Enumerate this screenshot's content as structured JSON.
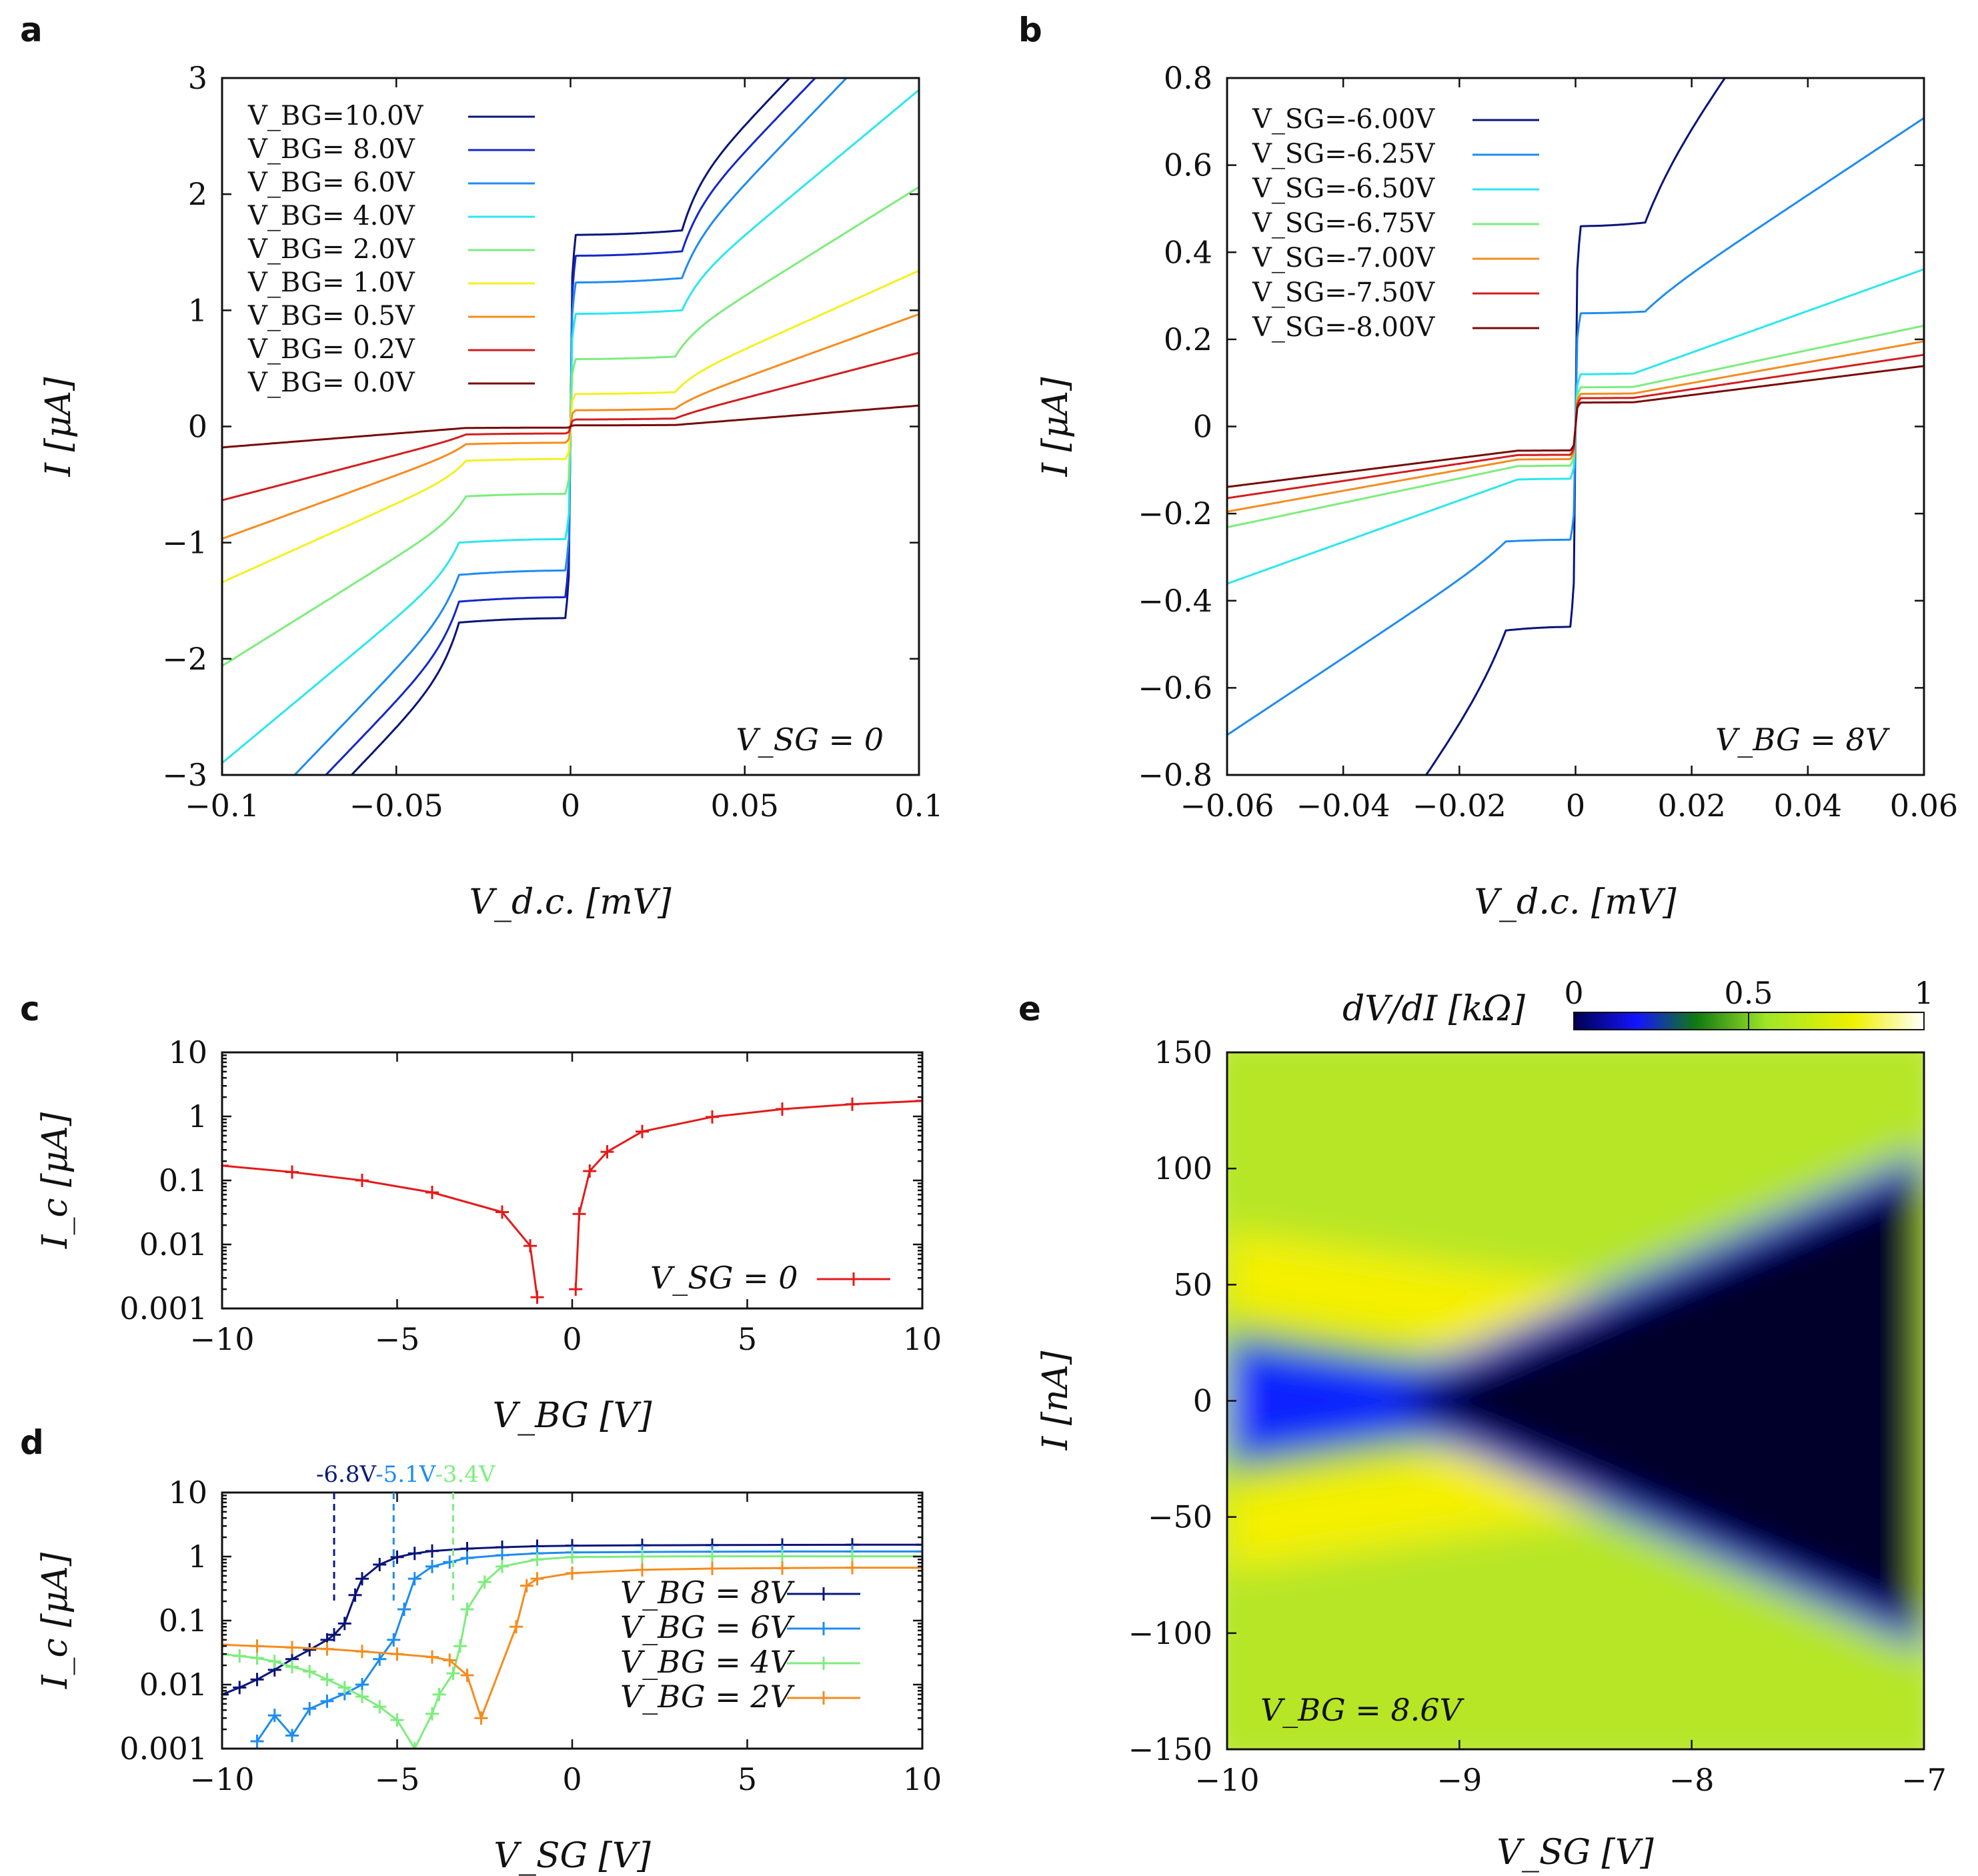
{
  "panels": {
    "a": {
      "label": "a",
      "xlabel": "V_d.c. [mV]",
      "ylabel": "I [μA]",
      "annotation": "V_SG = 0",
      "xticks": [
        "−0.1",
        "−0.05",
        "0",
        "0.05",
        "0.1"
      ],
      "yticks": [
        "−3",
        "−2",
        "−1",
        "0",
        "1",
        "2",
        "3"
      ]
    },
    "b": {
      "label": "b",
      "xlabel": "V_d.c. [mV]",
      "ylabel": "I [μA]",
      "annotation": "V_BG = 8V",
      "xticks": [
        "−0.06",
        "−0.04",
        "−0.02",
        "0",
        "0.02",
        "0.04",
        "0.06"
      ],
      "yticks": [
        "−0.8",
        "−0.6",
        "−0.4",
        "−0.2",
        "0",
        "0.2",
        "0.4",
        "0.6",
        "0.8"
      ]
    },
    "c": {
      "label": "c",
      "xlabel": "V_BG [V]",
      "ylabel": "I_c [μA]",
      "xticks": [
        "−10",
        "−5",
        "0",
        "5",
        "10"
      ],
      "yticks": [
        "0.001",
        "0.01",
        "0.1",
        "1",
        "10"
      ]
    },
    "d": {
      "label": "d",
      "xlabel": "V_SG [V]",
      "ylabel": "I_c [μA]",
      "xticks": [
        "−10",
        "−5",
        "0",
        "5",
        "10"
      ],
      "yticks": [
        "0.001",
        "0.01",
        "0.1",
        "1",
        "10"
      ],
      "vlines": [
        {
          "label": "-6.8V",
          "x": -6.8,
          "color": "#0a1a78"
        },
        {
          "label": "-5.1V",
          "x": -5.1,
          "color": "#1e8cf0"
        },
        {
          "label": "-3.4V",
          "x": -3.4,
          "color": "#7cf07c"
        }
      ]
    },
    "e": {
      "label": "e",
      "xlabel": "V_SG [V]",
      "ylabel": "I [nA]",
      "annotation": "V_BG = 8.6V",
      "colorbar_title": "dV/dI [kΩ]",
      "colorbar_ticks": [
        "0",
        "0.5",
        "1"
      ],
      "xticks": [
        "−10",
        "−9",
        "−8",
        "−7"
      ],
      "yticks": [
        "−150",
        "−100",
        "−50",
        "0",
        "50",
        "100",
        "150"
      ]
    }
  },
  "chart_data": [
    {
      "panel": "a",
      "type": "line",
      "title": "",
      "xlabel": "V_d.c. [mV]",
      "ylabel": "I [μA]",
      "xlim": [
        -0.1,
        0.1
      ],
      "ylim": [
        -3,
        3
      ],
      "legend_position": "top-left",
      "series": [
        {
          "name": "V_BG=10.0V",
          "color": "#0a1478",
          "ic": 1.65,
          "slope": 30,
          "kink": 0.032,
          "step": 0.35
        },
        {
          "name": "V_BG= 8.0V",
          "color": "#1428c8",
          "ic": 1.47,
          "slope": 30,
          "kink": 0.032,
          "step": 0.3
        },
        {
          "name": "V_BG= 6.0V",
          "color": "#1e8cf0",
          "ic": 1.24,
          "slope": 30,
          "kink": 0.032,
          "step": 0.25
        },
        {
          "name": "V_BG= 4.0V",
          "color": "#2ce6ee",
          "ic": 0.97,
          "slope": 24,
          "kink": 0.032,
          "step": 0.2
        },
        {
          "name": "V_BG= 2.0V",
          "color": "#7ced7c",
          "ic": 0.58,
          "slope": 18,
          "kink": 0.03,
          "step": 0.15
        },
        {
          "name": "V_BG= 1.0V",
          "color": "#f5f01e",
          "ic": 0.28,
          "slope": 13,
          "kink": 0.03,
          "step": 0.1
        },
        {
          "name": "V_BG= 0.5V",
          "color": "#f58c1e",
          "ic": 0.14,
          "slope": 10.5,
          "kink": 0.03,
          "step": 0.05
        },
        {
          "name": "V_BG= 0.2V",
          "color": "#d21e1e",
          "ic": 0.06,
          "slope": 7.5,
          "kink": 0.03,
          "step": 0.02
        },
        {
          "name": "V_BG= 0.0V",
          "color": "#780a0a",
          "ic": 0.01,
          "slope": 2.3,
          "kink": 0.03,
          "step": 0.0
        }
      ]
    },
    {
      "panel": "b",
      "type": "line",
      "title": "",
      "xlabel": "V_d.c. [mV]",
      "ylabel": "I [μA]",
      "xlim": [
        -0.06,
        0.06
      ],
      "ylim": [
        -0.8,
        0.8
      ],
      "legend_position": "top-left",
      "series": [
        {
          "name": "V_SG=-6.00V",
          "color": "#0a1478",
          "ic": 0.46,
          "slope": 18,
          "kink": 0.012,
          "step": 0.08
        },
        {
          "name": "V_SG=-6.25V",
          "color": "#1e8cf0",
          "ic": 0.26,
          "slope": 8.5,
          "kink": 0.012,
          "step": 0.02
        },
        {
          "name": "V_SG=-6.50V",
          "color": "#2ce6ee",
          "ic": 0.12,
          "slope": 4.6,
          "kink": 0.01,
          "step": 0.0
        },
        {
          "name": "V_SG=-6.75V",
          "color": "#7ced7c",
          "ic": 0.09,
          "slope": 2.7,
          "kink": 0.01,
          "step": 0.0
        },
        {
          "name": "V_SG=-7.00V",
          "color": "#f58c1e",
          "ic": 0.075,
          "slope": 2.3,
          "kink": 0.01,
          "step": 0.0
        },
        {
          "name": "V_SG=-7.50V",
          "color": "#d21e1e",
          "ic": 0.065,
          "slope": 1.9,
          "kink": 0.01,
          "step": 0.0
        },
        {
          "name": "V_SG=-8.00V",
          "color": "#780a0a",
          "ic": 0.055,
          "slope": 1.6,
          "kink": 0.01,
          "step": 0.0
        }
      ]
    },
    {
      "panel": "c",
      "type": "line",
      "title": "",
      "xlabel": "V_BG [V]",
      "ylabel": "I_c [μA]",
      "xlim": [
        -10,
        10
      ],
      "ylim": [
        0.001,
        10
      ],
      "yscale": "log",
      "legend_position": "bottom-right",
      "series": [
        {
          "name": "V_SG = 0",
          "color": "#e41a1a",
          "x": [
            -10,
            -8,
            -6,
            -4,
            -2,
            -1.2,
            -1.0
          ],
          "y": [
            0.17,
            0.135,
            0.1,
            0.065,
            0.032,
            0.0095,
            0.0015
          ],
          "x2": [
            0.1,
            0.2,
            0.5,
            1.0,
            2,
            4,
            6,
            8,
            10
          ],
          "y2": [
            0.002,
            0.03,
            0.14,
            0.28,
            0.58,
            0.98,
            1.3,
            1.55,
            1.75
          ]
        }
      ]
    },
    {
      "panel": "d",
      "type": "line",
      "title": "",
      "xlabel": "V_SG [V]",
      "ylabel": "I_c [μA]",
      "xlim": [
        -10,
        10
      ],
      "ylim": [
        0.001,
        10
      ],
      "yscale": "log",
      "legend_position": "bottom-right",
      "series": [
        {
          "name": "V_BG = 8V",
          "color": "#0a1478",
          "x": [
            -10,
            -9.5,
            -9,
            -8.5,
            -8,
            -7.5,
            -7,
            -6.8,
            -6.5,
            -6.2,
            -6,
            -5.5,
            -5,
            -4.5,
            -4,
            -3,
            -2,
            -1,
            0,
            2,
            4,
            6,
            8,
            10
          ],
          "y": [
            0.007,
            0.009,
            0.012,
            0.017,
            0.025,
            0.035,
            0.05,
            0.06,
            0.09,
            0.25,
            0.45,
            0.75,
            0.98,
            1.12,
            1.22,
            1.33,
            1.4,
            1.45,
            1.48,
            1.5,
            1.51,
            1.52,
            1.53,
            1.53
          ]
        },
        {
          "name": "V_BG = 6V",
          "color": "#1e8cf0",
          "x": [
            -9,
            -8.5,
            -8,
            -7.5,
            -7,
            -6.5,
            -6,
            -5.5,
            -5.1,
            -4.8,
            -4.5,
            -4,
            -3.5,
            -3,
            -2,
            -1,
            0,
            2,
            4,
            6,
            8,
            10
          ],
          "y": [
            0.0013,
            0.0033,
            0.0016,
            0.0042,
            0.0055,
            0.0072,
            0.01,
            0.025,
            0.05,
            0.15,
            0.45,
            0.7,
            0.82,
            0.95,
            1.05,
            1.12,
            1.16,
            1.18,
            1.19,
            1.2,
            1.2,
            1.2
          ]
        },
        {
          "name": "V_BG = 4V",
          "color": "#7ced7c",
          "x": [
            -10,
            -9.5,
            -9,
            -8.5,
            -8,
            -7.5,
            -7,
            -6.5,
            -6,
            -5.5,
            -5,
            -4.5,
            -4,
            -3.8,
            -3.4,
            -3.2,
            -3,
            -2.5,
            -2,
            -1,
            0,
            2,
            4,
            6,
            8,
            10
          ],
          "y": [
            0.03,
            0.028,
            0.026,
            0.023,
            0.019,
            0.016,
            0.012,
            0.009,
            0.0065,
            0.0045,
            0.0028,
            0.001,
            0.0035,
            0.007,
            0.015,
            0.04,
            0.15,
            0.4,
            0.7,
            0.9,
            0.98,
            1.0,
            1.01,
            1.01,
            1.01,
            1.01
          ]
        },
        {
          "name": "V_BG = 2V",
          "color": "#f58c1e",
          "x": [
            -10,
            -9,
            -8,
            -7,
            -6,
            -5,
            -4,
            -3.5,
            -3,
            -2.6,
            -1.6,
            -1.3,
            -1,
            0,
            2,
            4,
            6,
            8,
            10
          ],
          "y": [
            0.042,
            0.04,
            0.038,
            0.036,
            0.033,
            0.03,
            0.027,
            0.024,
            0.014,
            0.003,
            0.08,
            0.35,
            0.45,
            0.55,
            0.62,
            0.65,
            0.66,
            0.67,
            0.67
          ]
        }
      ]
    },
    {
      "panel": "e",
      "type": "heatmap",
      "title": "",
      "xlabel": "V_SG [V]",
      "ylabel": "I [nA]",
      "xlim": [
        -10,
        -7
      ],
      "ylim": [
        -150,
        150
      ],
      "colorbar": {
        "label": "dV/dI [kΩ]",
        "range": [
          0,
          1
        ]
      },
      "ridge_center_nA_at_xmin": 55,
      "ridge_center_nA_at_xmax": 10,
      "dark_region_onset_V": -9.3
    }
  ],
  "colors": {
    "colormap": [
      "#000000",
      "#0a0a64",
      "#1414ff",
      "#1eaa1e",
      "#a0e628",
      "#f0f000",
      "#ffffff"
    ]
  }
}
